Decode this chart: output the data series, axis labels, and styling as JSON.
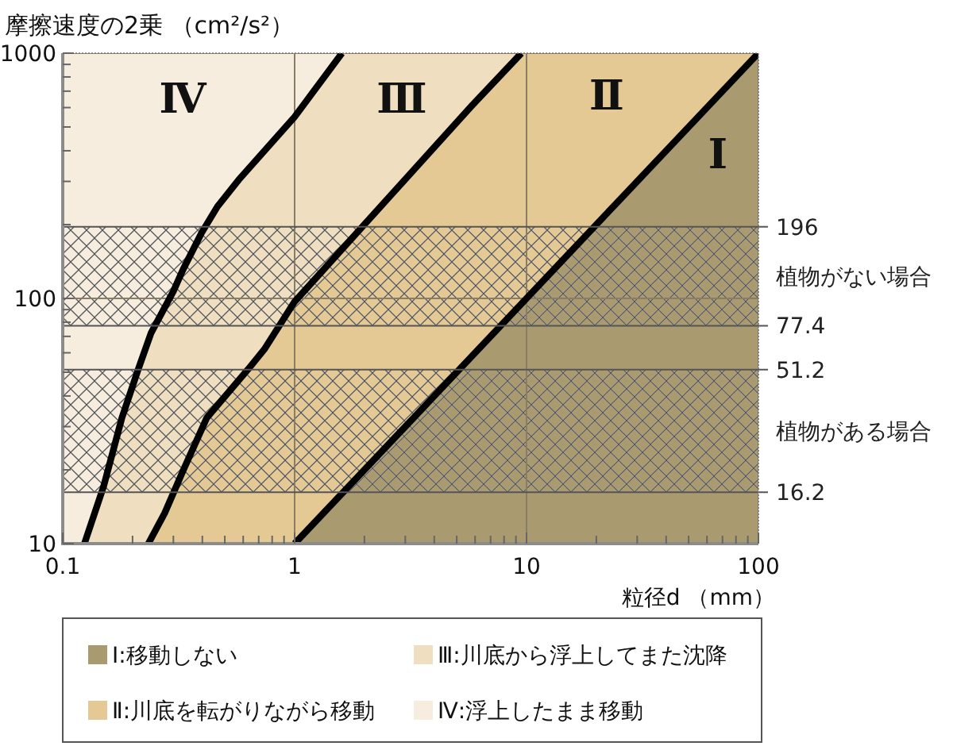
{
  "chart_data": {
    "type": "area",
    "ylabel": "摩擦速度の2乗 （cm²/s²）",
    "xlabel": "粒径d （mm）",
    "log": "xy",
    "xlim": [
      0.1,
      100
    ],
    "ylim": [
      10,
      1000
    ],
    "xticks": [
      0.1,
      1,
      10,
      100
    ],
    "yticks": [
      10,
      100,
      1000
    ],
    "grid": true,
    "legend": "bottom",
    "series": [
      {
        "name": "Ⅰ:移動しない",
        "color": "#aa9a70",
        "x": [
          1,
          100
        ],
        "values": [
          10,
          1000
        ]
      },
      {
        "name": "Ⅱ:川底を転がりながら移動",
        "color": "#e4c995",
        "x": [
          0.234,
          0.275,
          0.33,
          0.418,
          0.63,
          0.74,
          1,
          5.8,
          9.5,
          100
        ],
        "values": [
          10,
          13.3,
          19.8,
          32.6,
          51.4,
          62,
          97,
          610,
          1000,
          1000
        ]
      },
      {
        "name": "Ⅲ:川底から浮上してまた沈降",
        "color": "#efdfc0",
        "x": [
          0.124,
          0.15,
          0.18,
          0.211,
          0.24,
          0.3,
          0.33,
          0.397,
          0.465,
          0.573,
          1,
          1.6,
          9.5
        ],
        "values": [
          10,
          17.1,
          32.6,
          51,
          72,
          107,
          131,
          185,
          237,
          304,
          550,
          1000,
          1000
        ]
      },
      {
        "name": "Ⅳ:浮上したまま移動",
        "color": "#f7eddf",
        "x": [
          0.1,
          1.6
        ],
        "values": [
          1000,
          1000
        ]
      }
    ],
    "bands": [
      {
        "axis": "y",
        "from": 77.4,
        "to": 196,
        "label": "植物がない場合",
        "color": "#555555"
      },
      {
        "axis": "y",
        "from": 16.2,
        "to": 51.2,
        "label": "植物がある場合",
        "color": "#555555"
      }
    ],
    "ref_lines": [
      {
        "axis": "y",
        "value": 196,
        "label": "196",
        "color": "#555555"
      },
      {
        "axis": "y",
        "value": 77.4,
        "label": "77.4",
        "color": "#555555"
      },
      {
        "axis": "y",
        "value": 51.2,
        "label": "51.2",
        "color": "#555555"
      },
      {
        "axis": "y",
        "value": 16.2,
        "label": "16.2",
        "color": "#555555"
      }
    ],
    "annotations": [
      "Ⅳ",
      "Ⅲ",
      "Ⅱ",
      "Ⅰ"
    ]
  }
}
